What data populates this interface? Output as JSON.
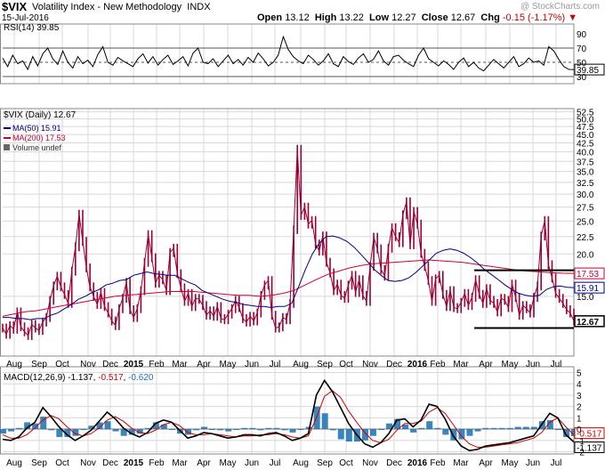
{
  "header": {
    "symbol": "$VIX",
    "name": "Volatility Index - New Methodology",
    "exchange": "INDX",
    "date": "15-Jul-2016",
    "watermark": "@ StockCharts.com",
    "open_label": "Open",
    "open": "13.12",
    "high_label": "High",
    "high": "13.22",
    "low_label": "Low",
    "low": "12.27",
    "close_label": "Close",
    "close": "12.67",
    "chg_label": "Chg",
    "chg": "-0.15 (-1.17%)"
  },
  "colors": {
    "price": "#990033",
    "ma50": "#000080",
    "ma200": "#cc0033",
    "macd": "#000000",
    "signal": "#cc0000",
    "hist": "#1a6fb0",
    "grid": "#d8d8d8"
  },
  "chart_data": [
    {
      "type": "line",
      "panel": "rsi",
      "legend": "RSI(14) 39.85",
      "last_value_label": "39.85",
      "yticks": [
        "90",
        "70",
        "50",
        "30"
      ],
      "ylim": [
        20,
        100
      ],
      "reference_lines": [
        70,
        50,
        30
      ],
      "series": [
        {
          "name": "RSI(14)",
          "values": [
            56,
            44,
            60,
            48,
            52,
            40,
            58,
            45,
            62,
            70,
            55,
            47,
            66,
            50,
            42,
            58,
            48,
            53,
            44,
            61,
            72,
            50,
            46,
            57,
            52,
            48,
            44,
            55,
            62,
            49,
            58,
            46,
            54,
            60,
            47,
            52,
            58,
            45,
            63,
            70,
            50,
            48,
            55,
            44,
            52,
            60,
            48,
            54,
            46,
            57,
            50,
            63,
            55,
            45,
            50,
            60,
            86,
            68,
            58,
            52,
            48,
            60,
            54,
            46,
            52,
            62,
            48,
            44,
            58,
            51,
            47,
            56,
            62,
            50,
            54,
            66,
            52,
            46,
            58,
            60,
            53,
            48,
            44,
            60,
            70,
            55,
            50,
            45,
            52,
            47,
            40,
            50,
            56,
            44,
            50,
            42,
            38,
            46,
            54,
            48,
            42,
            50,
            58,
            44,
            48,
            56,
            50,
            52,
            46,
            72,
            66,
            54,
            44,
            40,
            39.85
          ]
        }
      ]
    },
    {
      "type": "line",
      "panel": "price",
      "legend": [
        "$VIX (Daily) 12.67",
        "MA(50) 15.91",
        "MA(200) 17.53",
        "Volume undef"
      ],
      "x_labels": [
        "Aug",
        "Sep",
        "Oct",
        "Nov",
        "Dec",
        "2015",
        "Feb",
        "Mar",
        "Apr",
        "May",
        "Jun",
        "Jul",
        "Aug",
        "Sep",
        "Oct",
        "Nov",
        "Dec",
        "2016",
        "Feb",
        "Mar",
        "Apr",
        "May",
        "Jun",
        "Jul"
      ],
      "yticks": [
        "52.5",
        "50.0",
        "47.5",
        "45.0",
        "42.5",
        "40.0",
        "37.5",
        "35.0",
        "32.5",
        "30.0",
        "27.5",
        "25.0",
        "22.5",
        "20.0",
        "15.0"
      ],
      "ylim": [
        10,
        53
      ],
      "yscale": "log",
      "last_value_labels": {
        "ma200": "17.53",
        "ma50": "15.91",
        "price": "12.67"
      },
      "series": [
        {
          "name": "$VIX (Daily) 12.67",
          "values": [
            12.1,
            11.6,
            12.3,
            12.0,
            13.5,
            12.2,
            11.8,
            11.5,
            12.4,
            12.1,
            11.9,
            12.6,
            13.0,
            14.6,
            16.1,
            17.2,
            16.0,
            15.2,
            14.3,
            17.8,
            21.0,
            26.2,
            21.8,
            18.2,
            16.0,
            15.0,
            14.2,
            15.4,
            14.0,
            13.4,
            12.7,
            12.3,
            13.8,
            14.8,
            16.5,
            13.7,
            13.0,
            13.8,
            15.6,
            18.9,
            22.8,
            19.5,
            16.4,
            17.3,
            16.8,
            15.6,
            20.2,
            20.8,
            17.5,
            15.9,
            14.5,
            15.3,
            14.0,
            14.8,
            14.7,
            14.1,
            13.2,
            13.6,
            13.1,
            14.0,
            12.9,
            12.8,
            13.3,
            13.8,
            14.6,
            13.9,
            12.9,
            12.6,
            13.1,
            12.7,
            13.4,
            15.1,
            16.2,
            16.7,
            13.2,
            12.1,
            12.2,
            13.0,
            12.8,
            14.3,
            23.6,
            40.7,
            26.0,
            27.5,
            24.5,
            25.1,
            21.4,
            20.4,
            22.6,
            18.9,
            17.6,
            15.6,
            16.3,
            15.1,
            14.8,
            16.2,
            17.3,
            15.4,
            16.8,
            15.1,
            14.5,
            18.4,
            22.4,
            20.7,
            18.0,
            17.2,
            20.8,
            23.9,
            22.5,
            21.6,
            26.1,
            28.5,
            21.3,
            26.7,
            24.5,
            20.1,
            18.4,
            16.7,
            14.5,
            16.9,
            17.3,
            15.2,
            14.0,
            15.6,
            13.9,
            13.8,
            14.4,
            15.3,
            14.1,
            14.9,
            16.8,
            15.2,
            14.3,
            15.8,
            14.6,
            14.3,
            13.5,
            14.8,
            14.6,
            13.9,
            16.3,
            14.9,
            13.2,
            14.1,
            13.8,
            13.4,
            14.9,
            16.1,
            22.6,
            25.1,
            18.6,
            17.0,
            15.3,
            14.8,
            14.3,
            13.7,
            13.4,
            12.7
          ]
        },
        {
          "name": "MA(50) 15.91",
          "values": [
            13.0,
            13.0,
            12.9,
            12.9,
            12.8,
            12.9,
            12.9,
            13.2,
            13.4,
            13.8,
            14.2,
            14.7,
            15.0,
            15.4,
            15.7,
            16.2,
            16.4,
            16.7,
            16.8,
            17.3,
            17.5,
            17.7,
            17.5,
            17.4,
            17.3,
            17.3,
            16.9,
            16.5,
            16.2,
            15.6,
            15.3,
            15.0,
            14.7,
            14.5,
            14.4,
            14.2,
            14.1,
            14.0,
            14.0,
            13.9,
            14.0,
            14.0,
            14.3,
            16.0,
            18.0,
            20.0,
            21.5,
            22.5,
            22.6,
            22.3,
            21.8,
            21.0,
            20.0,
            19.0,
            18.0,
            17.3,
            16.7,
            16.6,
            16.7,
            17.0,
            17.6,
            18.4,
            19.2,
            20.1,
            20.5,
            20.7,
            20.5,
            20.1,
            19.5,
            18.8,
            18.0,
            17.4,
            16.8,
            16.2,
            15.7,
            15.3,
            15.1,
            15.0,
            15.1,
            15.7,
            16.0,
            16.1,
            15.95,
            15.91
          ]
        },
        {
          "name": "MA(200) 17.53",
          "values": [
            13.1,
            13.3,
            13.5,
            13.6,
            13.8,
            14.0,
            14.2,
            14.4,
            14.6,
            14.8,
            15.0,
            15.1,
            15.2,
            15.3,
            15.4,
            15.5,
            15.5,
            15.5,
            15.4,
            15.3,
            15.2,
            15.1,
            15.1,
            15.0,
            15.1,
            15.3,
            15.6,
            16.2,
            16.8,
            17.4,
            17.8,
            18.2,
            18.5,
            18.7,
            18.8,
            18.9,
            19.0,
            19.1,
            19.2,
            19.1,
            19.0,
            18.9,
            18.7,
            18.5,
            18.3,
            18.1,
            17.9,
            17.8,
            17.7,
            17.6,
            17.55,
            17.53
          ]
        },
        {
          "name": "Volume undef",
          "values": []
        }
      ]
    },
    {
      "type": "line",
      "panel": "macd",
      "legend": "MACD(12,26,9) -1.137, -0.517, -0.620",
      "legend_parts": {
        "label": "MACD(12,26,9)",
        "macd": "-1.137",
        "signal": "-0.517",
        "hist": "-0.620"
      },
      "last_value_labels": {
        "signal": "-0.517",
        "macd": "-1.137"
      },
      "yticks": [
        "5",
        "4",
        "3",
        "2",
        "1",
        "0",
        "-1",
        "-2"
      ],
      "ylim": [
        -2.2,
        5.2
      ],
      "x_labels": [
        "Aug",
        "Sep",
        "Oct",
        "Nov",
        "Dec",
        "2015",
        "Feb",
        "Mar",
        "Apr",
        "May",
        "Jun",
        "Jul",
        "Aug",
        "Sep",
        "Oct",
        "Nov",
        "Dec",
        "2016",
        "Feb",
        "Mar",
        "Apr",
        "May",
        "Jun",
        "Jul"
      ],
      "series": [
        {
          "name": "MACD",
          "values": [
            -0.9,
            -1.0,
            -0.7,
            0.1,
            0.6,
            1.9,
            1.1,
            0.2,
            -0.5,
            -1.0,
            -0.6,
            -0.1,
            0.7,
            1.5,
            0.9,
            0.1,
            -0.4,
            -0.7,
            -0.3,
            0.5,
            0.8,
            0.6,
            -0.1,
            -0.8,
            -0.6,
            -0.3,
            -0.4,
            -0.6,
            -0.8,
            -0.7,
            -0.5,
            -0.5,
            -0.6,
            -0.4,
            -0.3,
            -0.6,
            -1.0,
            -0.8,
            -0.4,
            3.0,
            4.3,
            3.3,
            1.9,
            0.5,
            -0.5,
            -1.3,
            -1.6,
            -1.2,
            -0.4,
            0.8,
            0.9,
            0.2,
            0.8,
            2.2,
            2.0,
            0.9,
            -0.6,
            -1.5,
            -1.9,
            -1.8,
            -1.5,
            -1.4,
            -1.3,
            -1.2,
            -1.0,
            -0.8,
            -0.6,
            0.4,
            1.4,
            1.0,
            -0.5,
            -1.137
          ]
        },
        {
          "name": "Signal",
          "values": [
            -0.5,
            -0.8,
            -0.8,
            -0.5,
            0.1,
            0.8,
            1.2,
            0.9,
            0.2,
            -0.4,
            -0.6,
            -0.4,
            0.1,
            0.8,
            1.1,
            0.7,
            0.1,
            -0.3,
            -0.4,
            -0.1,
            0.4,
            0.6,
            0.3,
            -0.3,
            -0.5,
            -0.5,
            -0.4,
            -0.5,
            -0.6,
            -0.7,
            -0.6,
            -0.6,
            -0.5,
            -0.5,
            -0.4,
            -0.5,
            -0.7,
            -0.8,
            -0.6,
            1.0,
            2.9,
            3.4,
            2.8,
            1.6,
            0.6,
            -0.3,
            -1.0,
            -1.2,
            -0.9,
            -0.1,
            0.5,
            0.5,
            0.7,
            1.5,
            1.9,
            1.4,
            0.4,
            -0.6,
            -1.3,
            -1.6,
            -1.6,
            -1.5,
            -1.4,
            -1.3,
            -1.2,
            -1.0,
            -0.8,
            -0.3,
            0.6,
            1.0,
            0.2,
            -0.517
          ]
        },
        {
          "name": "Histogram",
          "values": [
            -0.4,
            -0.2,
            0.1,
            0.6,
            0.5,
            1.1,
            -0.1,
            -0.7,
            -0.7,
            -0.6,
            0.0,
            0.3,
            0.6,
            0.7,
            -0.2,
            -0.6,
            -0.5,
            -0.4,
            0.1,
            0.6,
            0.4,
            0.0,
            -0.4,
            -0.5,
            -0.1,
            0.2,
            0.0,
            -0.1,
            -0.2,
            0.0,
            0.1,
            0.1,
            -0.1,
            0.1,
            0.1,
            -0.1,
            -0.3,
            0.0,
            0.2,
            2.0,
            1.4,
            -0.1,
            -0.9,
            -1.1,
            -1.1,
            -1.0,
            -0.6,
            0.0,
            0.5,
            0.9,
            0.4,
            -0.3,
            0.1,
            0.7,
            0.1,
            -0.5,
            -1.0,
            -0.9,
            -0.6,
            -0.2,
            0.1,
            0.1,
            0.1,
            0.1,
            0.2,
            0.2,
            0.2,
            0.7,
            0.8,
            0.0,
            -0.7,
            -0.62
          ]
        }
      ]
    }
  ]
}
